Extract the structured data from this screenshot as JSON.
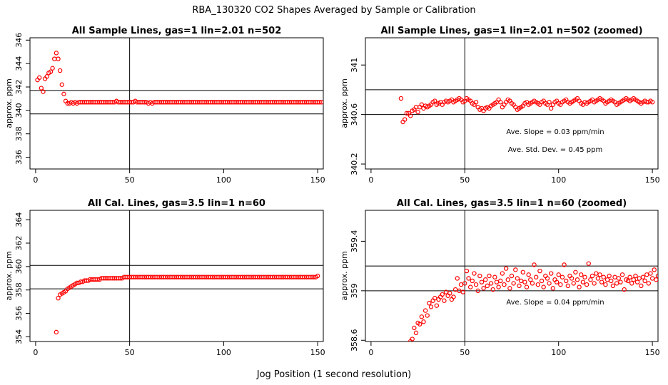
{
  "suptitle": "RBA_130320  CO2 Shapes Averaged by Sample or Calibration",
  "xlabel": "Jog Position (1 second resolution)",
  "chart_data": [
    {
      "type": "scatter",
      "title": "All Sample Lines, gas=1 lin=2.01 n=502",
      "ylabel": "approx. ppm",
      "xlim": [
        -3,
        153
      ],
      "ylim": [
        335.0,
        346.2
      ],
      "xticks": [
        0,
        50,
        100,
        150
      ],
      "yticks": [
        336,
        338,
        340,
        342,
        344,
        346
      ],
      "vline": 50,
      "hlines": [
        339.7,
        341.7
      ],
      "annotations": [],
      "series": [
        {
          "color": "#ff0000",
          "x_start": 1,
          "values": [
            342.6,
            342.8,
            341.9,
            341.6,
            342.7,
            342.9,
            343.2,
            343.3,
            343.6,
            344.4,
            344.9,
            344.4,
            343.4,
            342.2,
            341.4,
            340.8,
            340.6,
            340.6,
            340.7,
            340.6,
            340.7,
            340.6,
            340.7,
            340.7,
            340.7,
            340.7,
            340.7,
            340.7,
            340.7,
            340.7,
            340.7,
            340.7,
            340.7,
            340.7,
            340.7,
            340.7,
            340.7,
            340.7,
            340.7,
            340.7,
            340.7,
            340.7,
            340.8,
            340.7,
            340.7,
            340.7,
            340.7,
            340.7,
            340.7,
            340.7,
            340.7,
            340.7,
            340.8,
            340.7,
            340.7,
            340.7,
            340.7,
            340.7,
            340.7,
            340.6,
            340.7,
            340.6,
            340.7,
            340.7,
            340.7,
            340.7,
            340.7,
            340.7,
            340.7,
            340.7,
            340.7,
            340.7,
            340.7,
            340.7,
            340.7,
            340.7,
            340.7,
            340.7,
            340.7,
            340.7,
            340.7,
            340.7,
            340.7,
            340.7,
            340.7,
            340.7,
            340.7,
            340.7,
            340.7,
            340.7,
            340.7,
            340.7,
            340.7,
            340.7,
            340.7,
            340.7,
            340.7,
            340.7,
            340.7,
            340.7,
            340.7,
            340.7,
            340.7,
            340.7,
            340.7,
            340.7,
            340.7,
            340.7,
            340.7,
            340.7,
            340.7,
            340.7,
            340.7,
            340.7,
            340.7,
            340.7,
            340.7,
            340.7,
            340.7,
            340.7,
            340.7,
            340.7,
            340.7,
            340.7,
            340.7,
            340.7,
            340.7,
            340.7,
            340.7,
            340.7,
            340.7,
            340.7,
            340.7,
            340.7,
            340.7,
            340.7,
            340.7,
            340.7,
            340.7,
            340.7,
            340.7,
            340.7,
            340.7,
            340.7,
            340.7,
            340.7,
            340.7,
            340.7,
            340.7,
            340.7,
            340.7,
            340.7
          ]
        }
      ]
    },
    {
      "type": "scatter",
      "title": "All Sample Lines, gas=1 lin=2.01 n=502 (zoomed)",
      "ylabel": "approx. ppm",
      "xlim": [
        -3,
        153
      ],
      "ylim": [
        340.16,
        341.22
      ],
      "xticks": [
        0,
        50,
        100,
        150
      ],
      "yticks": [
        340.2,
        340.6,
        341.0
      ],
      "vline": 50,
      "hlines": [
        340.6,
        340.8
      ],
      "annotations": [
        "Ave. Slope =  0.03  ppm/min",
        "Ave. Std. Dev. =  0.45  ppm"
      ],
      "series": [
        {
          "color": "#ff0000",
          "x_start": 16,
          "values": [
            340.73,
            340.54,
            340.56,
            340.61,
            340.61,
            340.59,
            340.63,
            340.64,
            340.66,
            340.62,
            340.66,
            340.68,
            340.65,
            340.67,
            340.66,
            340.67,
            340.68,
            340.7,
            340.71,
            340.68,
            340.69,
            340.7,
            340.68,
            340.7,
            340.71,
            340.7,
            340.71,
            340.72,
            340.7,
            340.71,
            340.72,
            340.73,
            340.72,
            340.7,
            340.71,
            340.73,
            340.72,
            340.71,
            340.69,
            340.68,
            340.7,
            340.66,
            340.64,
            340.65,
            340.63,
            340.65,
            340.66,
            340.65,
            340.67,
            340.68,
            340.69,
            340.7,
            340.72,
            340.7,
            340.66,
            340.68,
            340.7,
            340.72,
            340.71,
            340.69,
            340.68,
            340.66,
            340.64,
            340.65,
            340.66,
            340.67,
            340.69,
            340.7,
            340.68,
            340.69,
            340.7,
            340.71,
            340.7,
            340.69,
            340.68,
            340.7,
            340.71,
            340.69,
            340.68,
            340.7,
            340.65,
            340.68,
            340.7,
            340.71,
            340.69,
            340.68,
            340.7,
            340.71,
            340.72,
            340.7,
            340.69,
            340.7,
            340.71,
            340.72,
            340.73,
            340.71,
            340.69,
            340.68,
            340.7,
            340.69,
            340.7,
            340.71,
            340.72,
            340.7,
            340.71,
            340.72,
            340.73,
            340.72,
            340.71,
            340.69,
            340.7,
            340.71,
            340.72,
            340.71,
            340.7,
            340.68,
            340.69,
            340.7,
            340.71,
            340.72,
            340.73,
            340.72,
            340.71,
            340.72,
            340.73,
            340.72,
            340.71,
            340.7,
            340.69,
            340.7,
            340.71,
            340.7,
            340.7,
            340.71,
            340.7
          ]
        }
      ]
    },
    {
      "type": "scatter",
      "title": "All Cal. Lines, gas=3.5 lin=1 n=60",
      "ylabel": "approx. ppm",
      "xlim": [
        -3,
        153
      ],
      "ylim": [
        353.6,
        364.8
      ],
      "xticks": [
        0,
        50,
        100,
        150
      ],
      "yticks": [
        354,
        356,
        358,
        360,
        362,
        364
      ],
      "vline": 50,
      "hlines": [
        358.1,
        360.1
      ],
      "annotations": [],
      "series": [
        {
          "color": "#ff0000",
          "x_start": 11,
          "values": [
            354.4,
            357.3,
            357.6,
            357.7,
            357.8,
            357.9,
            358.1,
            358.2,
            358.3,
            358.4,
            358.5,
            358.6,
            358.6,
            358.7,
            358.7,
            358.8,
            358.8,
            358.8,
            358.9,
            358.9,
            358.9,
            358.9,
            358.9,
            358.9,
            359.0,
            359.0,
            359.0,
            359.0,
            359.0,
            359.0,
            359.0,
            359.0,
            359.0,
            359.0,
            359.0,
            359.0,
            359.1,
            359.1,
            359.1,
            359.1,
            359.1,
            359.1,
            359.1,
            359.1,
            359.1,
            359.1,
            359.1,
            359.1,
            359.1,
            359.1,
            359.1,
            359.1,
            359.1,
            359.1,
            359.1,
            359.1,
            359.1,
            359.1,
            359.1,
            359.1,
            359.1,
            359.1,
            359.1,
            359.1,
            359.1,
            359.1,
            359.1,
            359.1,
            359.1,
            359.1,
            359.1,
            359.1,
            359.1,
            359.1,
            359.1,
            359.1,
            359.1,
            359.1,
            359.1,
            359.1,
            359.1,
            359.1,
            359.1,
            359.1,
            359.1,
            359.1,
            359.1,
            359.1,
            359.1,
            359.1,
            359.1,
            359.1,
            359.1,
            359.1,
            359.1,
            359.1,
            359.1,
            359.1,
            359.1,
            359.1,
            359.1,
            359.1,
            359.1,
            359.1,
            359.1,
            359.1,
            359.1,
            359.1,
            359.1,
            359.1,
            359.1,
            359.1,
            359.1,
            359.1,
            359.1,
            359.1,
            359.1,
            359.1,
            359.1,
            359.1,
            359.1,
            359.1,
            359.1,
            359.1,
            359.1,
            359.1,
            359.1,
            359.1,
            359.1,
            359.1,
            359.1,
            359.1,
            359.1,
            359.1,
            359.1,
            359.1,
            359.1,
            359.1,
            359.1,
            359.2
          ]
        }
      ]
    },
    {
      "type": "scatter",
      "title": "All Cal. Lines, gas=3.5 lin=1 n=60 (zoomed)",
      "ylabel": "approx. ppm",
      "xlim": [
        -3,
        153
      ],
      "ylim": [
        358.59,
        359.65
      ],
      "xticks": [
        0,
        50,
        100,
        150
      ],
      "yticks": [
        358.6,
        359.0,
        359.4
      ],
      "vline": 50,
      "hlines": [
        359.0,
        359.2
      ],
      "annotations": [
        "Ave. Slope =  0.04  ppm/min"
      ],
      "series": [
        {
          "color": "#ff0000",
          "x_start": 21,
          "values": [
            358.59,
            358.61,
            358.7,
            358.66,
            358.74,
            358.73,
            358.79,
            358.75,
            358.84,
            358.8,
            358.9,
            358.87,
            358.92,
            358.94,
            358.88,
            358.93,
            358.95,
            358.97,
            358.92,
            358.99,
            358.96,
            358.98,
            358.93,
            358.95,
            359.01,
            359.1,
            359.0,
            359.05,
            358.99,
            359.06,
            359.16,
            359.1,
            359.03,
            359.08,
            359.14,
            359.05,
            359.0,
            359.12,
            359.07,
            359.02,
            359.09,
            359.04,
            359.12,
            359.06,
            359.01,
            359.11,
            359.07,
            359.03,
            359.08,
            359.14,
            359.05,
            359.18,
            359.09,
            359.02,
            359.12,
            359.06,
            359.17,
            359.1,
            359.04,
            359.08,
            359.15,
            359.07,
            359.03,
            359.13,
            359.09,
            359.06,
            359.21,
            359.11,
            359.05,
            359.16,
            359.08,
            359.03,
            359.12,
            359.1,
            359.06,
            359.14,
            359.02,
            359.09,
            359.07,
            359.13,
            359.05,
            359.11,
            359.21,
            359.08,
            359.04,
            359.12,
            359.1,
            359.06,
            359.15,
            359.09,
            359.03,
            359.13,
            359.07,
            359.11,
            359.05,
            359.22,
            359.09,
            359.12,
            359.06,
            359.14,
            359.1,
            359.13,
            359.07,
            359.11,
            359.05,
            359.09,
            359.12,
            359.08,
            359.04,
            359.11,
            359.06,
            359.1,
            359.07,
            359.13,
            359.01,
            359.09,
            359.08,
            359.11,
            359.06,
            359.09,
            359.12,
            359.07,
            359.1,
            359.04,
            359.11,
            359.08,
            359.13,
            359.06,
            359.14,
            359.1,
            359.17,
            359.09,
            359.12,
            359.08,
            359.15,
            359.2,
            359.13,
            359.18,
            359.14,
            359.15
          ]
        }
      ]
    }
  ]
}
